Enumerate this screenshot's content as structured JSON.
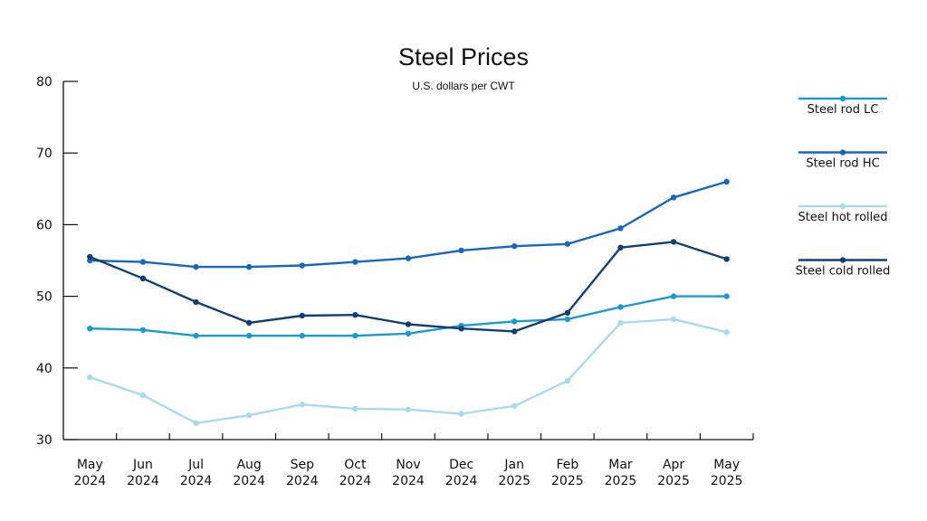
{
  "chart_data": {
    "type": "line",
    "title": "Steel Prices",
    "subtitle": "U.S. dollars per CWT",
    "xlabel": "",
    "ylabel": "",
    "categories": [
      [
        "May",
        "2024"
      ],
      [
        "Jun",
        "2024"
      ],
      [
        "Jul",
        "2024"
      ],
      [
        "Aug",
        "2024"
      ],
      [
        "Sep",
        "2024"
      ],
      [
        "Oct",
        "2024"
      ],
      [
        "Nov",
        "2024"
      ],
      [
        "Dec",
        "2024"
      ],
      [
        "Jan",
        "2025"
      ],
      [
        "Feb",
        "2025"
      ],
      [
        "Mar",
        "2025"
      ],
      [
        "Apr",
        "2025"
      ],
      [
        "May",
        "2025"
      ]
    ],
    "ylim": [
      30,
      80
    ],
    "yticks": [
      30,
      40,
      50,
      60,
      70,
      80
    ],
    "grid": false,
    "legend_position": "right",
    "series": [
      {
        "name": "Steel rod LC",
        "color": "#1b9bcb",
        "values": [
          45.5,
          45.3,
          44.5,
          44.5,
          44.5,
          44.5,
          44.8,
          45.9,
          46.5,
          46.8,
          48.5,
          50.0,
          50.0
        ]
      },
      {
        "name": "Steel rod HC",
        "color": "#1668bd",
        "values": [
          55.0,
          54.8,
          54.1,
          54.1,
          54.3,
          54.8,
          55.3,
          56.4,
          57.0,
          57.3,
          59.5,
          63.8,
          66.0
        ]
      },
      {
        "name": "Steel hot rolled",
        "color": "#a8dbea",
        "values": [
          38.7,
          36.2,
          32.3,
          33.4,
          34.9,
          34.3,
          34.2,
          33.6,
          34.7,
          38.2,
          46.3,
          46.8,
          45.0
        ]
      },
      {
        "name": "Steel cold rolled",
        "color": "#123f73",
        "values": [
          55.5,
          52.5,
          49.2,
          46.3,
          47.3,
          47.4,
          46.1,
          45.5,
          45.1,
          47.7,
          56.8,
          57.6,
          55.2
        ]
      }
    ]
  }
}
